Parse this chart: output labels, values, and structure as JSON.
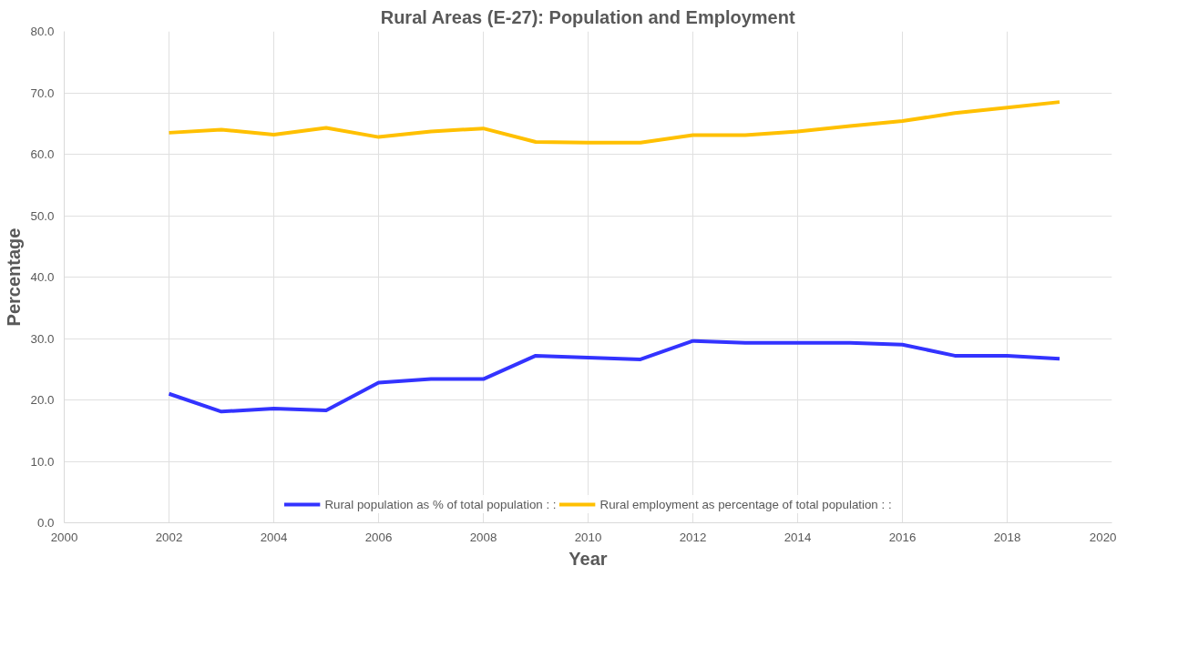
{
  "chart_data": {
    "type": "line",
    "title": "Rural Areas (E-27): Population and Employment",
    "xlabel": "Year",
    "ylabel": "Percentage",
    "x": [
      2002,
      2003,
      2004,
      2005,
      2006,
      2007,
      2008,
      2009,
      2010,
      2011,
      2012,
      2013,
      2014,
      2015,
      2016,
      2017,
      2018,
      2019
    ],
    "series": [
      {
        "name": "Rural population as % of total population : :",
        "color": "#3333ff",
        "values": [
          21.0,
          18.1,
          18.6,
          18.3,
          22.8,
          23.4,
          23.4,
          27.2,
          26.9,
          26.6,
          29.6,
          29.3,
          29.3,
          29.3,
          29.0,
          27.2,
          27.2,
          26.7
        ]
      },
      {
        "name": "Rural employment as percentage of total population : :",
        "color": "#ffc000",
        "values": [
          63.5,
          64.0,
          63.2,
          64.3,
          62.8,
          63.7,
          64.2,
          62.0,
          61.9,
          61.9,
          63.1,
          63.1,
          63.7,
          64.6,
          65.4,
          66.7,
          67.6,
          68.5
        ]
      }
    ],
    "xlim": [
      2000,
      2020
    ],
    "xticks": [
      2000,
      2002,
      2004,
      2006,
      2008,
      2010,
      2012,
      2014,
      2016,
      2018,
      2020
    ],
    "ylim": [
      0,
      80
    ],
    "yticks": [
      {
        "value": 0,
        "label": "0.0"
      },
      {
        "value": 10,
        "label": "10.0"
      },
      {
        "value": 20,
        "label": "20.0"
      },
      {
        "value": 30,
        "label": "30.0"
      },
      {
        "value": 40,
        "label": "40.0"
      },
      {
        "value": 50,
        "label": "50.0"
      },
      {
        "value": 60,
        "label": "60.0"
      },
      {
        "value": 70,
        "label": "70.0"
      },
      {
        "value": 80,
        "label": "80.0"
      }
    ],
    "grid": true,
    "legend": "bottom",
    "marker": "none",
    "line_style": "solid"
  }
}
